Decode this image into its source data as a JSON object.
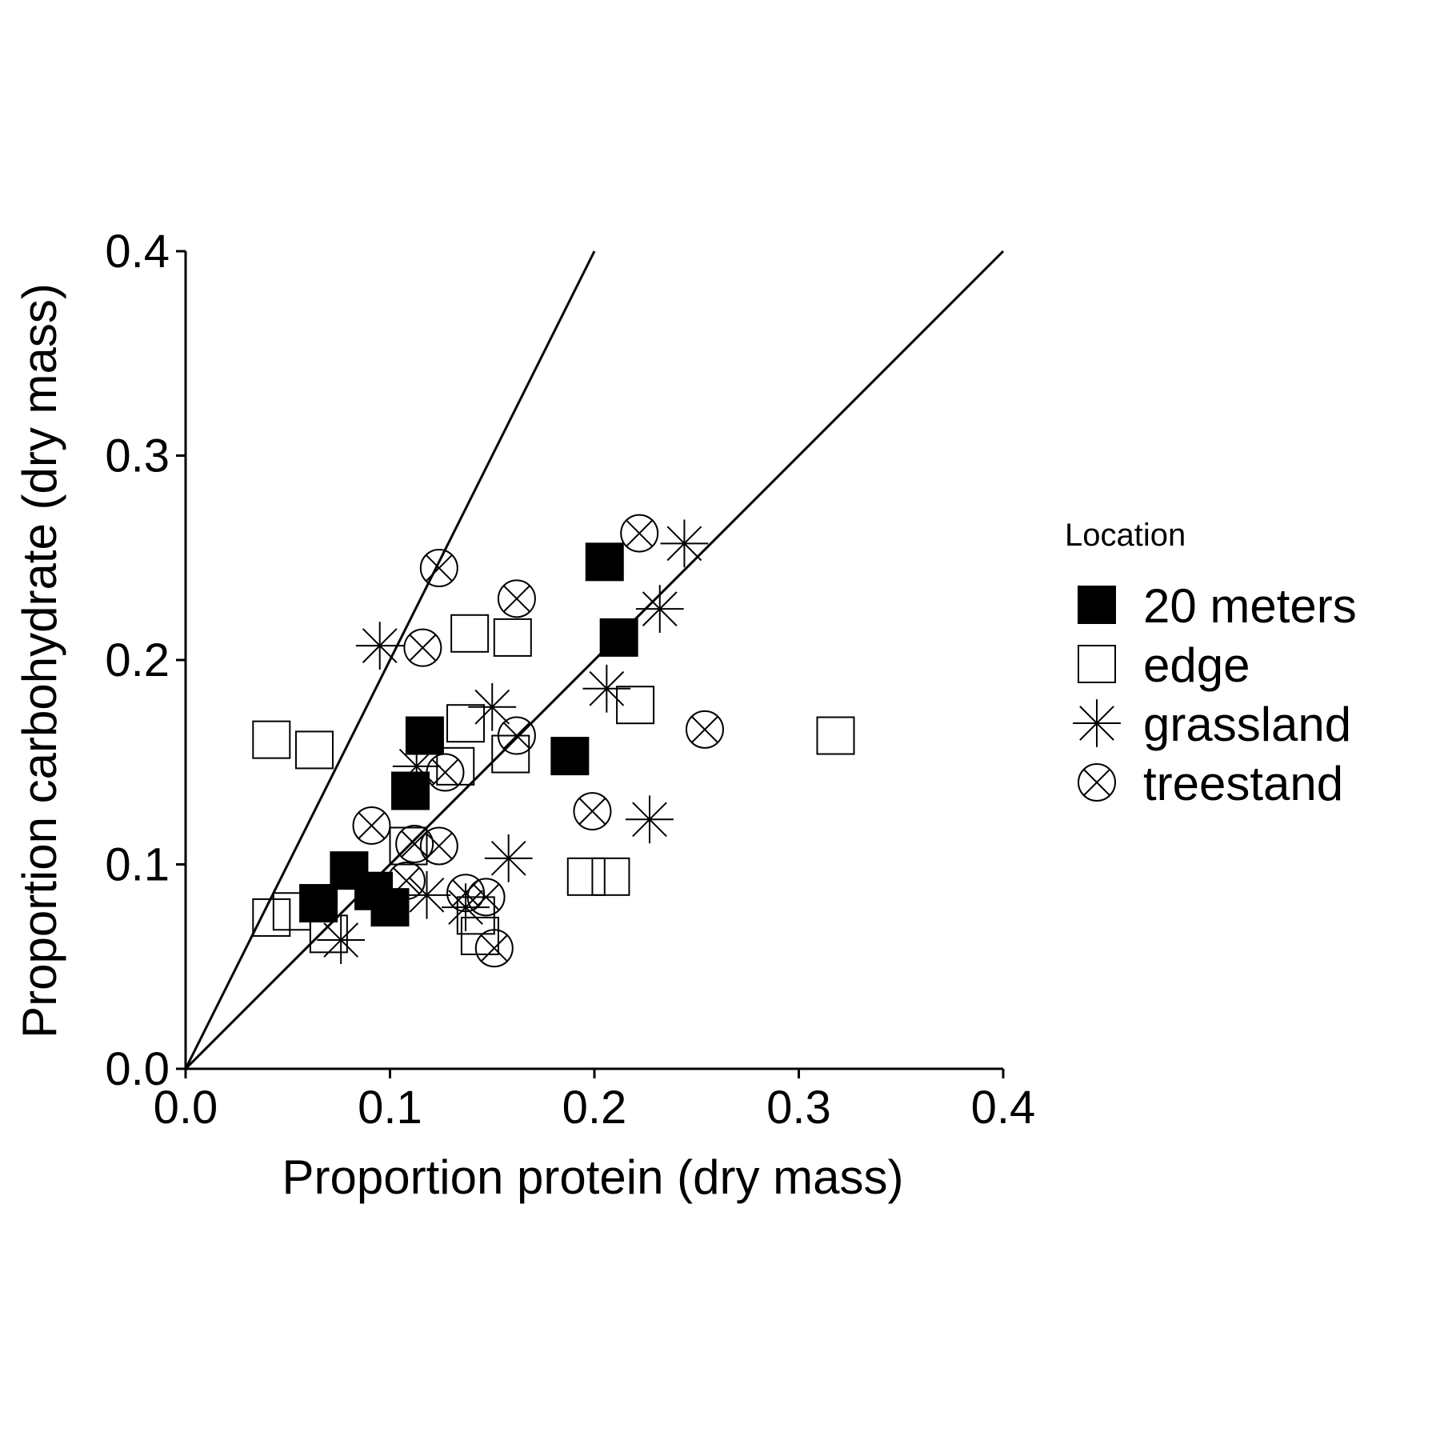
{
  "chart_data": {
    "type": "scatter",
    "xlabel": "Proportion protein (dry mass)",
    "ylabel": "Proportion carbohydrate (dry mass)",
    "xlim": [
      0,
      0.4
    ],
    "ylim": [
      0,
      0.4
    ],
    "x_ticks": [
      "0.0",
      "0.1",
      "0.2",
      "0.3",
      "0.4"
    ],
    "y_ticks": [
      "0.0",
      "0.1",
      "0.2",
      "0.3",
      "0.4"
    ],
    "grid": false,
    "legend": {
      "title": "Location",
      "position": "right"
    },
    "reference_lines": [
      {
        "slope": 2,
        "intercept": 0
      },
      {
        "slope": 1,
        "intercept": 0
      }
    ],
    "series": [
      {
        "name": "20 meters",
        "marker": "filled-square",
        "points": [
          [
            0.205,
            0.248
          ],
          [
            0.212,
            0.211
          ],
          [
            0.117,
            0.163
          ],
          [
            0.11,
            0.136
          ],
          [
            0.188,
            0.153
          ],
          [
            0.08,
            0.097
          ],
          [
            0.065,
            0.081
          ],
          [
            0.092,
            0.087
          ],
          [
            0.1,
            0.079
          ]
        ]
      },
      {
        "name": "edge",
        "marker": "open-square",
        "points": [
          [
            0.139,
            0.213
          ],
          [
            0.16,
            0.211
          ],
          [
            0.042,
            0.161
          ],
          [
            0.063,
            0.156
          ],
          [
            0.137,
            0.169
          ],
          [
            0.132,
            0.148
          ],
          [
            0.159,
            0.154
          ],
          [
            0.22,
            0.178
          ],
          [
            0.318,
            0.163
          ],
          [
            0.109,
            0.109
          ],
          [
            0.196,
            0.094
          ],
          [
            0.208,
            0.094
          ],
          [
            0.042,
            0.074
          ],
          [
            0.052,
            0.077
          ],
          [
            0.07,
            0.066
          ],
          [
            0.142,
            0.075
          ],
          [
            0.144,
            0.065
          ]
        ]
      },
      {
        "name": "grassland",
        "marker": "asterisk",
        "points": [
          [
            0.244,
            0.257
          ],
          [
            0.232,
            0.225
          ],
          [
            0.095,
            0.207
          ],
          [
            0.206,
            0.186
          ],
          [
            0.15,
            0.177
          ],
          [
            0.113,
            0.148
          ],
          [
            0.158,
            0.103
          ],
          [
            0.227,
            0.122
          ],
          [
            0.118,
            0.085
          ],
          [
            0.137,
            0.079
          ],
          [
            0.076,
            0.063
          ]
        ]
      },
      {
        "name": "treestand",
        "marker": "circle-x",
        "points": [
          [
            0.222,
            0.262
          ],
          [
            0.124,
            0.245
          ],
          [
            0.162,
            0.23
          ],
          [
            0.116,
            0.206
          ],
          [
            0.162,
            0.163
          ],
          [
            0.127,
            0.145
          ],
          [
            0.254,
            0.166
          ],
          [
            0.199,
            0.126
          ],
          [
            0.091,
            0.119
          ],
          [
            0.112,
            0.11
          ],
          [
            0.124,
            0.109
          ],
          [
            0.108,
            0.092
          ],
          [
            0.137,
            0.086
          ],
          [
            0.147,
            0.084
          ],
          [
            0.151,
            0.059
          ]
        ]
      }
    ]
  }
}
